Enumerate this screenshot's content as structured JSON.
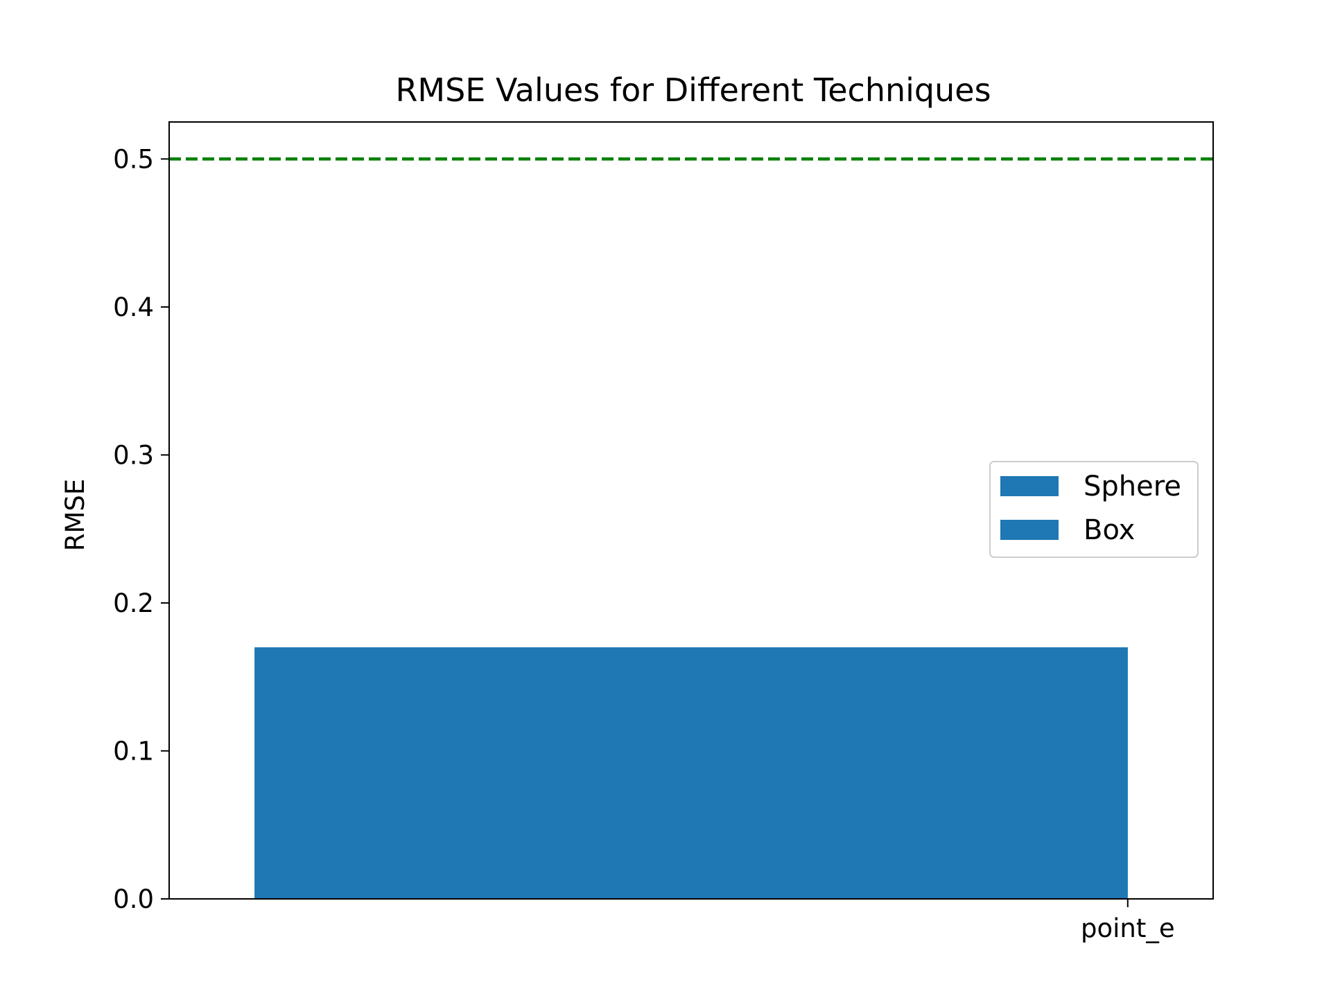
{
  "chart_data": {
    "type": "bar",
    "title": "RMSE Values for Different Techniques",
    "xlabel": "",
    "ylabel": "RMSE",
    "categories": [
      "point_e"
    ],
    "series": [
      {
        "name": "Sphere",
        "values": [
          0.17
        ],
        "color": "#1f77b4"
      },
      {
        "name": "Box",
        "values": [
          0.17
        ],
        "color": "#1f77b4"
      }
    ],
    "ylim": [
      0,
      0.525
    ],
    "yticks": [
      0.0,
      0.1,
      0.2,
      0.3,
      0.4,
      0.5
    ],
    "ytick_labels": [
      "0.0",
      "0.1",
      "0.2",
      "0.3",
      "0.4",
      "0.5"
    ],
    "reference_line": {
      "y": 0.5,
      "style": "dashed",
      "color": "#008000"
    },
    "legend": {
      "position": "center-right"
    },
    "grid": false
  }
}
